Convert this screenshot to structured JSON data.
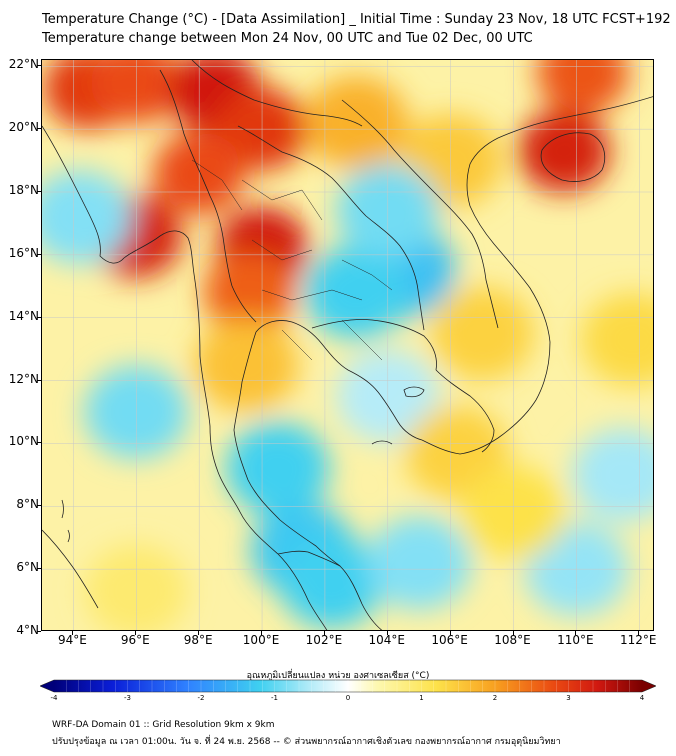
{
  "title_line1": "Temperature Change (°C) - [Data Assimilation] _ Initial Time : Sunday 23 Nov, 18 UTC FCST+192",
  "title_line2": "Temperature change between Mon 24 Nov, 00 UTC and Tue 02 Dec, 00 UTC",
  "map": {
    "lon_range": [
      93,
      112.5
    ],
    "lat_range": [
      4,
      22.2
    ],
    "lat_ticks": [
      "22°N",
      "20°N",
      "18°N",
      "16°N",
      "14°N",
      "12°N",
      "10°N",
      "8°N",
      "6°N",
      "4°N"
    ],
    "lon_ticks": [
      "94°E",
      "96°E",
      "98°E",
      "100°E",
      "102°E",
      "104°E",
      "106°E",
      "108°E",
      "110°E",
      "112°E"
    ],
    "lat_values": [
      22,
      20,
      18,
      16,
      14,
      12,
      10,
      8,
      6,
      4
    ],
    "lon_values": [
      94,
      96,
      98,
      100,
      102,
      104,
      106,
      108,
      110,
      112
    ],
    "field_blobs": [
      {
        "lon": 94.5,
        "lat": 21.3,
        "value": 3.0
      },
      {
        "lon": 96.0,
        "lat": 21.5,
        "value": 2.8
      },
      {
        "lon": 98.5,
        "lat": 21.2,
        "value": 3.4
      },
      {
        "lon": 100.0,
        "lat": 20.0,
        "value": 3.0
      },
      {
        "lon": 98.0,
        "lat": 18.6,
        "value": 2.8
      },
      {
        "lon": 96.0,
        "lat": 16.6,
        "value": 3.3
      },
      {
        "lon": 100.0,
        "lat": 16.2,
        "value": 3.4
      },
      {
        "lon": 99.6,
        "lat": 14.8,
        "value": 2.6
      },
      {
        "lon": 103.0,
        "lat": 20.2,
        "value": 1.8
      },
      {
        "lon": 109.6,
        "lat": 19.3,
        "value": 3.3
      },
      {
        "lon": 110.2,
        "lat": 21.8,
        "value": 2.7
      },
      {
        "lon": 106.0,
        "lat": 19.0,
        "value": 1.5
      },
      {
        "lon": 104.5,
        "lat": 15.5,
        "value": -1.4
      },
      {
        "lon": 103.0,
        "lat": 14.8,
        "value": -1.2
      },
      {
        "lon": 104.0,
        "lat": 17.4,
        "value": -0.9
      },
      {
        "lon": 94.2,
        "lat": 17.2,
        "value": -0.8
      },
      {
        "lon": 96.0,
        "lat": 11.0,
        "value": -0.9
      },
      {
        "lon": 100.5,
        "lat": 9.2,
        "value": -1.2
      },
      {
        "lon": 101.3,
        "lat": 6.6,
        "value": -1.3
      },
      {
        "lon": 102.2,
        "lat": 5.6,
        "value": -1.2
      },
      {
        "lon": 105.0,
        "lat": 6.2,
        "value": -0.8
      },
      {
        "lon": 110.0,
        "lat": 6.0,
        "value": -0.7
      },
      {
        "lon": 111.5,
        "lat": 9.0,
        "value": -0.6
      },
      {
        "lon": 104.0,
        "lat": 11.5,
        "value": -0.5
      },
      {
        "lon": 107.0,
        "lat": 13.5,
        "value": 1.4
      },
      {
        "lon": 106.2,
        "lat": 9.7,
        "value": 1.4
      },
      {
        "lon": 108.0,
        "lat": 7.8,
        "value": 1.2
      },
      {
        "lon": 111.8,
        "lat": 13.3,
        "value": 1.3
      },
      {
        "lon": 96.0,
        "lat": 5.3,
        "value": 0.9
      },
      {
        "lon": 99.5,
        "lat": 12.5,
        "value": 1.6
      }
    ]
  },
  "colorbar": {
    "label": "อุณหภูมิเปลี่ยนแปลง หน่วย องศาเซลเซียส (°C)",
    "min": -4,
    "max": 4,
    "ticks": [
      "-4",
      "-3",
      "-2",
      "-1",
      "0",
      "1",
      "2",
      "3",
      "4"
    ],
    "tick_values": [
      -4,
      -3,
      -2,
      -1,
      0,
      1,
      2,
      3,
      4
    ],
    "stops": [
      {
        "v": -4,
        "color": "#00007a"
      },
      {
        "v": -3.2,
        "color": "#0a1ed8"
      },
      {
        "v": -2.2,
        "color": "#2f80ff"
      },
      {
        "v": -1.2,
        "color": "#3fd0f0"
      },
      {
        "v": -0.5,
        "color": "#b6ecf8"
      },
      {
        "v": 0,
        "color": "#ffffff"
      },
      {
        "v": 0.4,
        "color": "#fdf8b0"
      },
      {
        "v": 1.2,
        "color": "#fde24a"
      },
      {
        "v": 2.0,
        "color": "#f8a020"
      },
      {
        "v": 2.8,
        "color": "#ea4a12"
      },
      {
        "v": 3.4,
        "color": "#d01810"
      },
      {
        "v": 4,
        "color": "#7a0000"
      }
    ]
  },
  "footer_line1": "WRF-DA Domain 01 :: Grid Resolution 9km x 9km",
  "footer_line2": "ปรับปรุงข้อมูล ณ เวลา 01:00น. วัน จ. ที่ 24 พ.ย. 2568 -- © ส่วนพยากรณ์อากาศเชิงตัวเลข กองพยากรณ์อากาศ กรมอุตุนิยมวิทยา"
}
